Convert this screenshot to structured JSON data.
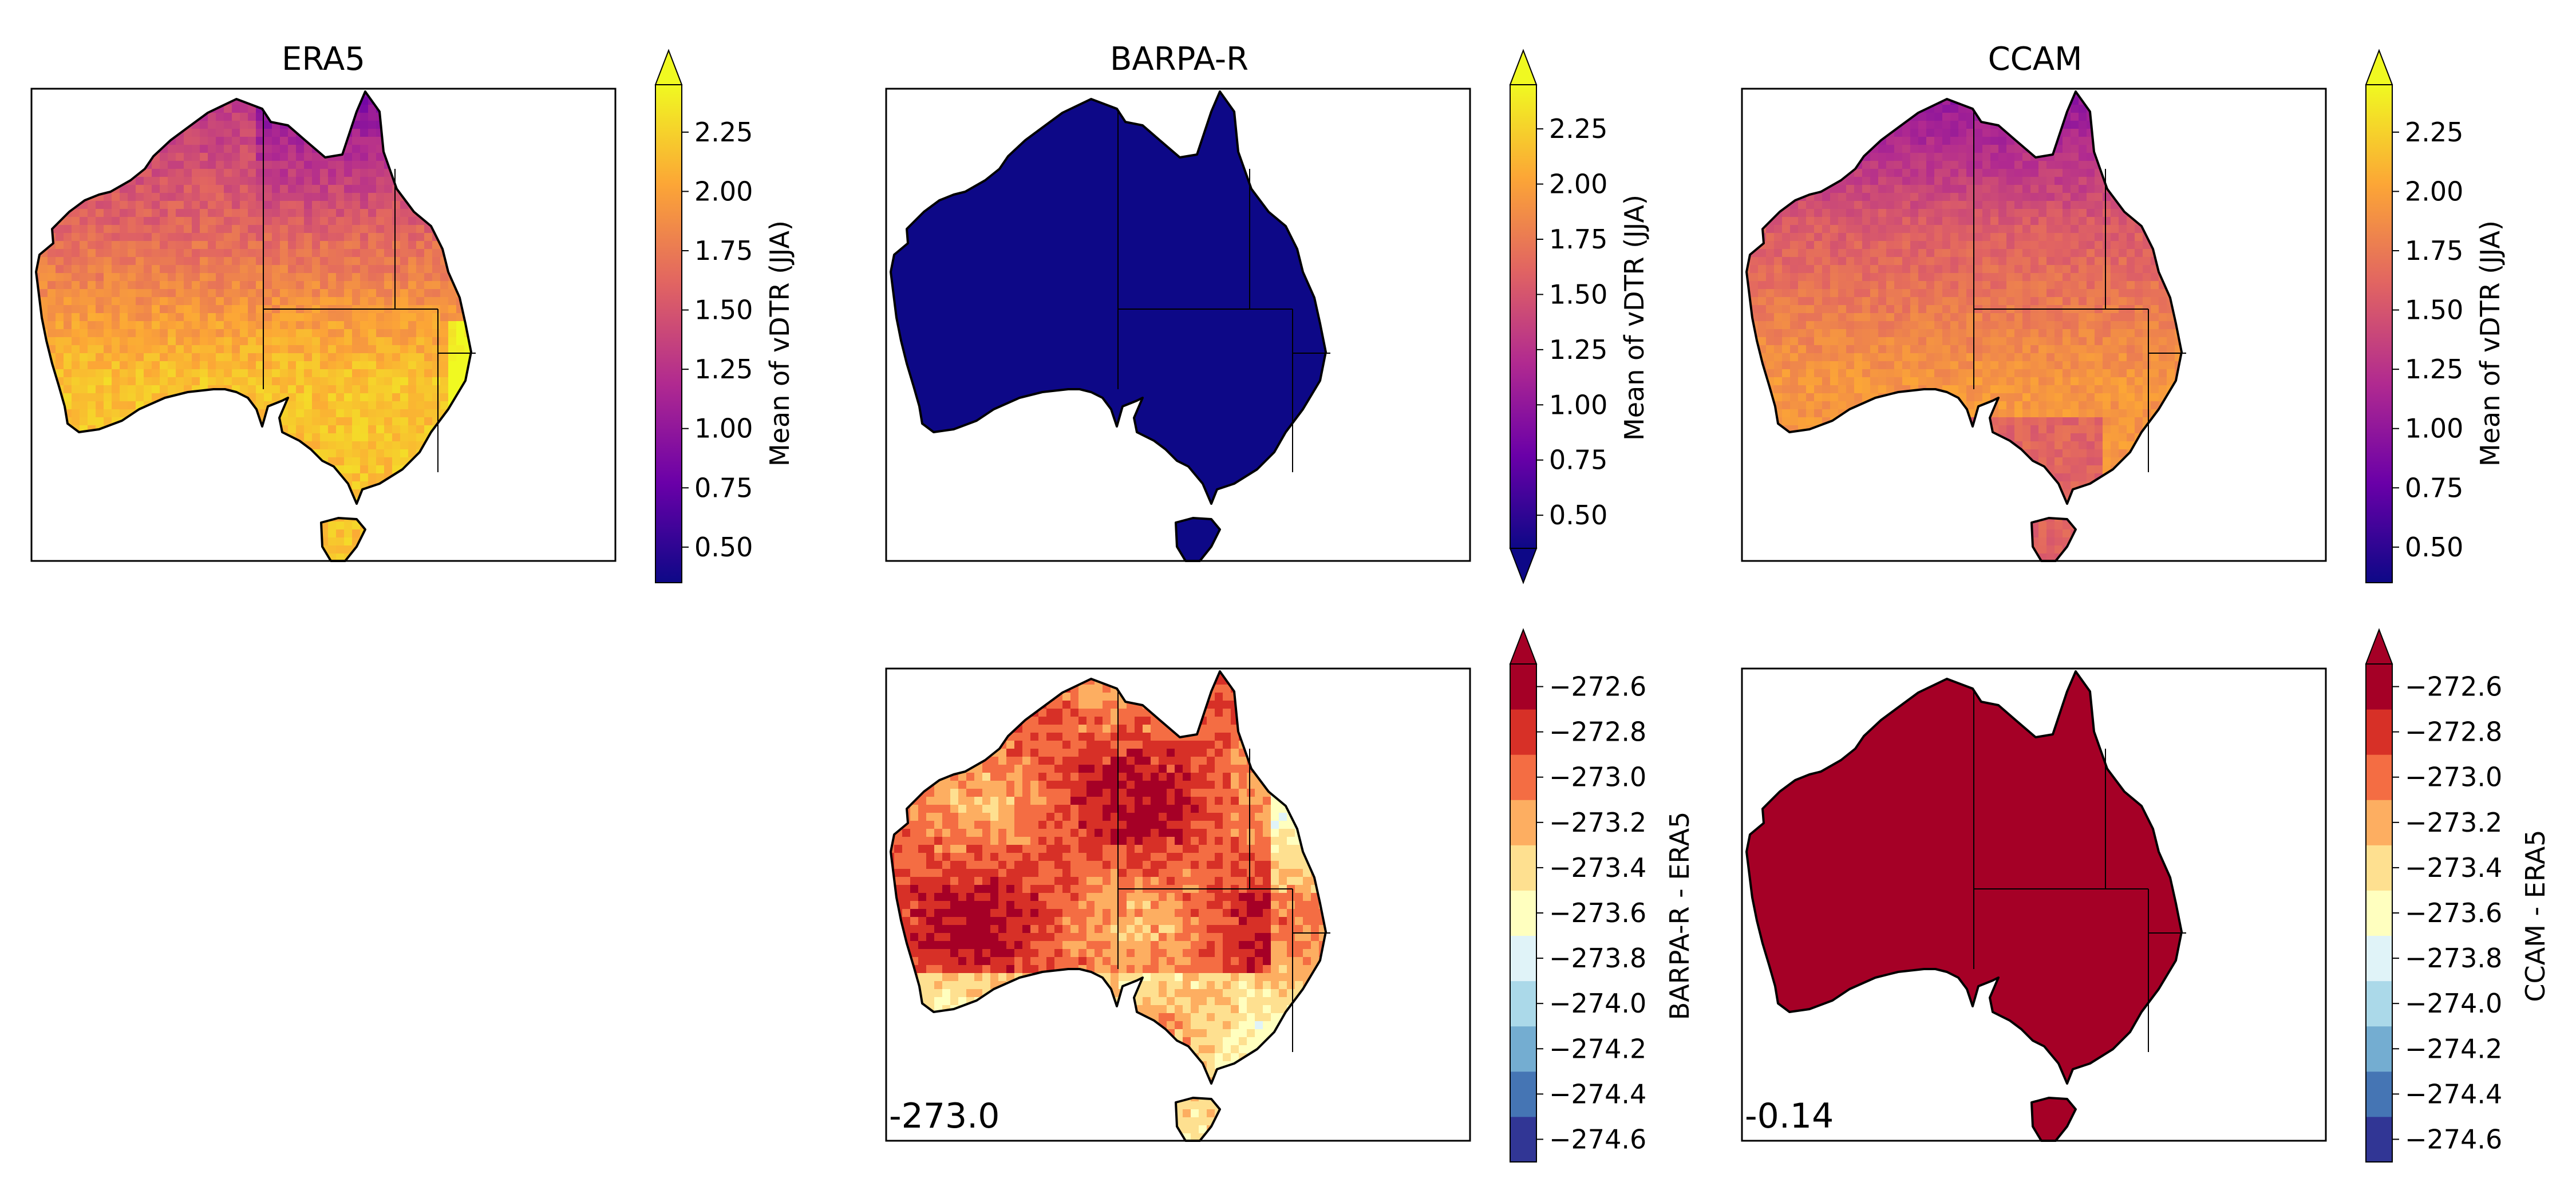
{
  "panels": [
    {
      "id": "era5",
      "title": "ERA5",
      "kind": "plasma",
      "variant": "era5",
      "cbar_label": "Mean of vDTR (JJA)",
      "extend": "max"
    },
    {
      "id": "barpa",
      "title": "BARPA-R",
      "kind": "plasma",
      "variant": "barpa",
      "cbar_label": "Mean of vDTR (JJA)",
      "extend": "both"
    },
    {
      "id": "ccam",
      "title": "CCAM",
      "kind": "plasma",
      "variant": "ccam",
      "cbar_label": "Mean of vDTR (JJA)",
      "extend": "max"
    },
    {
      "id": "diff_barpa",
      "title": "",
      "kind": "diverging",
      "variant": "diff_barpa",
      "cbar_label": "BARPA-R - ERA5",
      "extend": "max",
      "annotation": "-273.0"
    },
    {
      "id": "diff_ccam",
      "title": "",
      "kind": "diverging",
      "variant": "diff_ccam",
      "cbar_label": "CCAM - ERA5",
      "extend": "max",
      "annotation": "-0.14"
    }
  ],
  "colorbars": {
    "plasma": {
      "range": [
        0.35,
        2.45
      ],
      "ticks": [
        "0.50",
        "0.75",
        "1.00",
        "1.25",
        "1.50",
        "1.75",
        "2.00",
        "2.25"
      ],
      "tick_values": [
        0.5,
        0.75,
        1.0,
        1.25,
        1.5,
        1.75,
        2.0,
        2.25
      ]
    },
    "diverging": {
      "levels": [
        -274.7,
        -274.5,
        -274.3,
        -274.1,
        -273.9,
        -273.7,
        -273.5,
        -273.3,
        -273.1,
        -272.9,
        -272.7,
        -272.5
      ],
      "ticks": [
        "−274.6",
        "−274.4",
        "−274.2",
        "−274.0",
        "−273.8",
        "−273.6",
        "−273.4",
        "−273.2",
        "−273.0",
        "−272.8",
        "−272.6"
      ],
      "tick_values": [
        -274.6,
        -274.4,
        -274.2,
        -274.0,
        -273.8,
        -273.6,
        -273.4,
        -273.2,
        -273.0,
        -272.8,
        -272.6
      ],
      "colors": [
        "#313695",
        "#4575b4",
        "#74add1",
        "#abd9e9",
        "#e0f3f8",
        "#ffffbf",
        "#fee090",
        "#fdae61",
        "#f46d43",
        "#d73027",
        "#a50026"
      ]
    }
  },
  "colors": {
    "plasma_stops": [
      "#0d0887",
      "#6a00a8",
      "#b12a90",
      "#e16462",
      "#fca636",
      "#f0f921"
    ],
    "barpa_fill": "#0d0887",
    "ccam_diff_fill": "#a50026",
    "nan_area": "#ffffff"
  }
}
